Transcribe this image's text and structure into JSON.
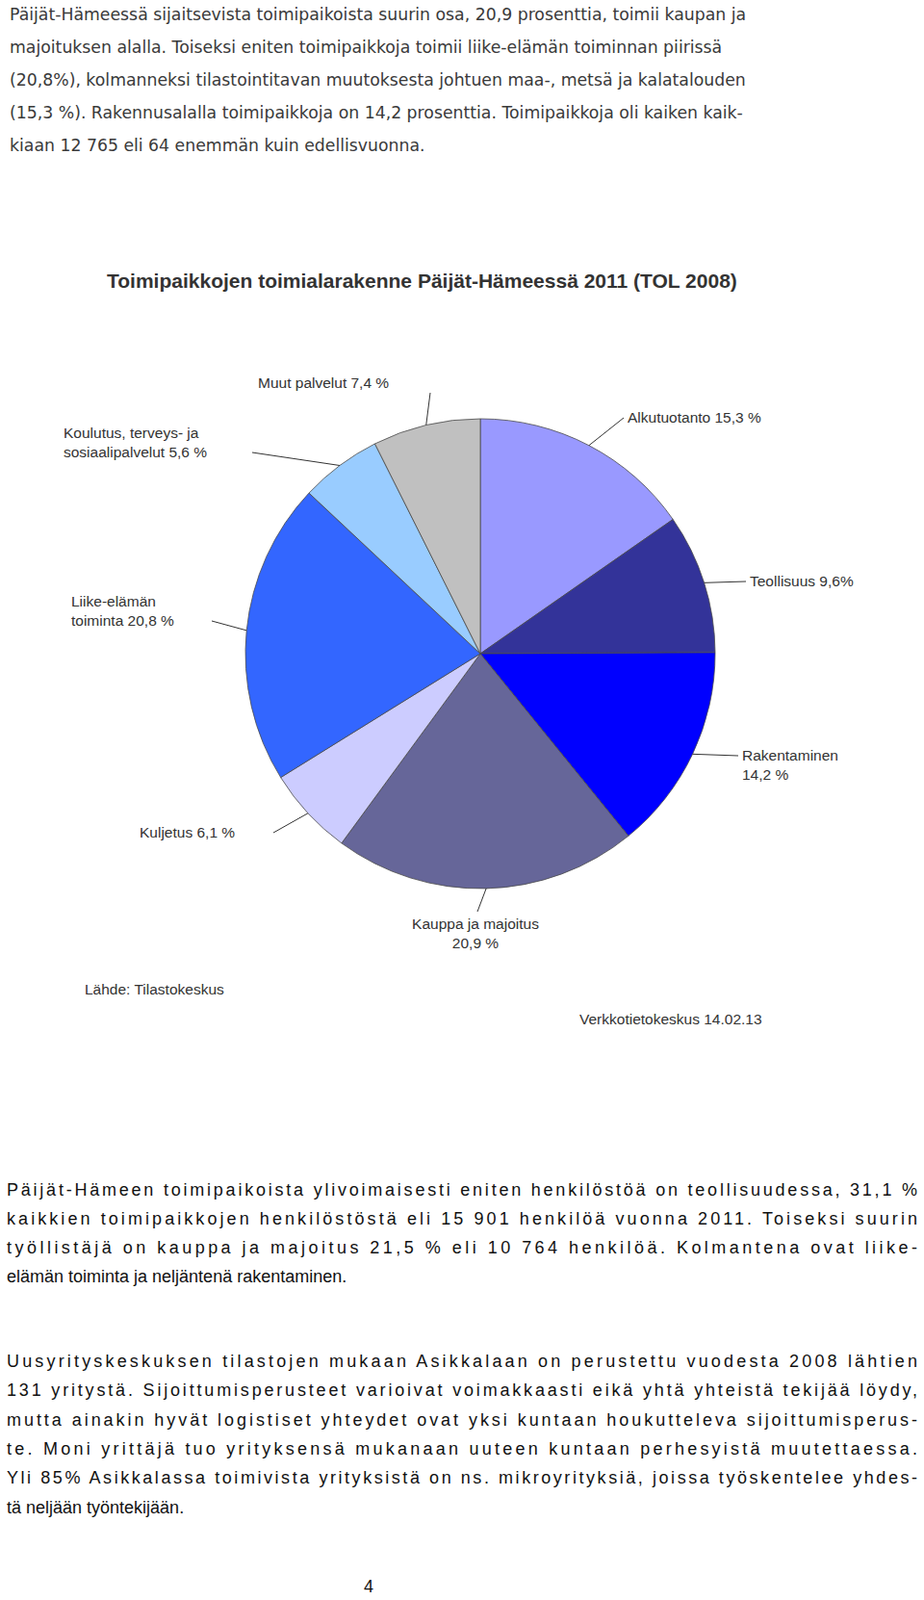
{
  "intro": {
    "lines": [
      "Päijät-Hämeessä sijaitsevista toimipaikoista suurin osa, 20,9 prosenttia, toimii kaupan ja",
      "majoituksen alalla. Toiseksi eniten toimipaikkoja toimii liike-elämän toiminnan piirissä",
      "(20,8%), kolmanneksi tilastointitavan muutoksesta johtuen maa-, metsä ja kalatalouden",
      "(15,3 %). Rakennusalalla toimipaikkoja on 14,2 prosenttia. Toimipaikkoja oli kaiken kaik-",
      "kiaan 12 765 eli 64 enemmän kuin edellisvuonna."
    ]
  },
  "chart_data": {
    "type": "pie",
    "title": "Toimipaikkojen toimialarakenne Päijät-Hämeessä 2011 (TOL 2008)",
    "categories": [
      "Alkutuotanto",
      "Teollisuus",
      "Rakentaminen",
      "Kauppa ja majoitus",
      "Kuljetus",
      "Liike-elämän toiminta",
      "Koulutus, terveys- ja sosiaalipalvelut",
      "Muut palvelut"
    ],
    "values": [
      15.3,
      9.6,
      14.2,
      20.9,
      6.1,
      20.8,
      5.6,
      7.4
    ],
    "value_labels": [
      "15,3 %",
      "9,6%",
      "14,2 %",
      "20,9 %",
      "6,1 %",
      "20,8 %",
      "5,6 %",
      "7,4 %"
    ],
    "colors": [
      "#9999ff",
      "#333399",
      "#0000ff",
      "#666699",
      "#ccccff",
      "#3366ff",
      "#99ccff",
      "#c0c0c0"
    ],
    "data_labels": true,
    "annotations": [
      "Lähde: Tilastokeskus",
      "Verkkotietokeskus 14.02.13"
    ]
  },
  "body": [
    {
      "lines": [
        "Päijät-Hämeen toimipaikoista ylivoimaisesti eniten henkilöstöä on teollisuudessa, 31,1 %",
        "kaikkien toimipaikkojen henkilöstöstä eli 15 901 henkilöä vuonna 2011. Toiseksi suurin",
        "työllistäjä on kauppa ja majoitus 21,5 % eli 10 764 henkilöä. Kolmantena ovat liike-",
        "elämän toiminta ja neljäntenä rakentaminen."
      ]
    },
    {
      "lines": [
        "Uusyrityskeskuksen tilastojen mukaan Asikkalaan on perustettu vuodesta 2008 lähtien",
        "131 yritystä. Sijoittumisperusteet varioivat voimakkaasti eikä yhtä yhteistä tekijää löydy,",
        "mutta ainakin hyvät logistiset yhteydet ovat yksi kuntaan houkutteleva sijoittumisperus-",
        "te. Moni yrittäjä tuo yrityksensä mukanaan uuteen kuntaan perhesyistä muutettaessa.",
        "Yli 85% Asikkalassa toimivista yrityksistä on ns. mikroyrityksiä, joissa työskentelee yhdes-",
        "tä neljään työntekijään."
      ]
    }
  ],
  "page_number": 4
}
